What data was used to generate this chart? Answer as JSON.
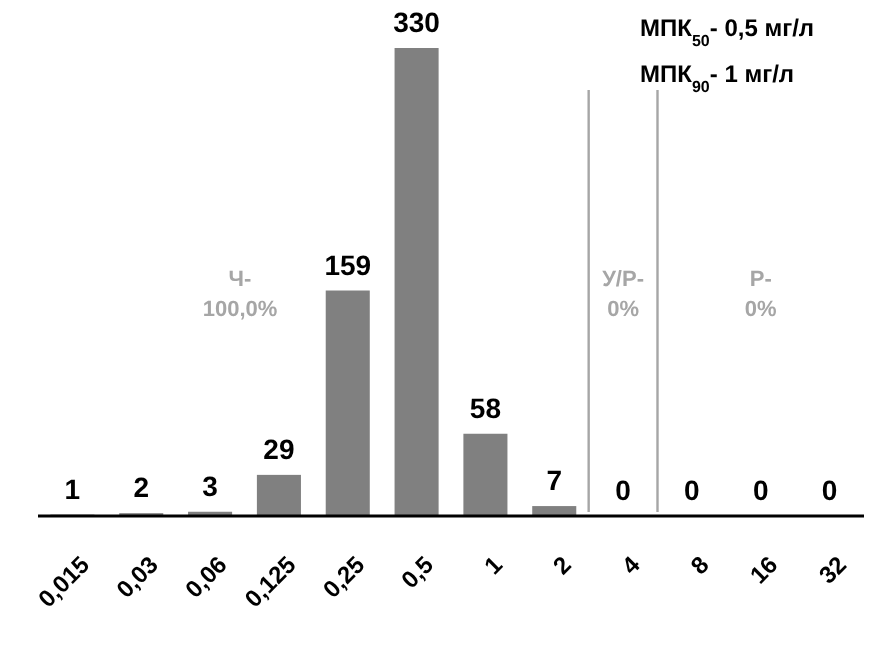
{
  "chart_data": {
    "type": "bar",
    "categories": [
      "0,015",
      "0,03",
      "0,06",
      "0,125",
      "0,25",
      "0,5",
      "1",
      "2",
      "4",
      "8",
      "16",
      "32"
    ],
    "values": [
      1,
      2,
      3,
      29,
      159,
      330,
      58,
      7,
      0,
      0,
      0,
      0
    ],
    "color": "#808080",
    "data_labels": true,
    "annotations": [
      "МПК$_{50}$- 0,5 мг/л",
      "МПК$_{90}$- 1 мг/л",
      "Ч- 100,0%",
      "У/Р- 0%",
      "Р- 0%"
    ]
  }
}
